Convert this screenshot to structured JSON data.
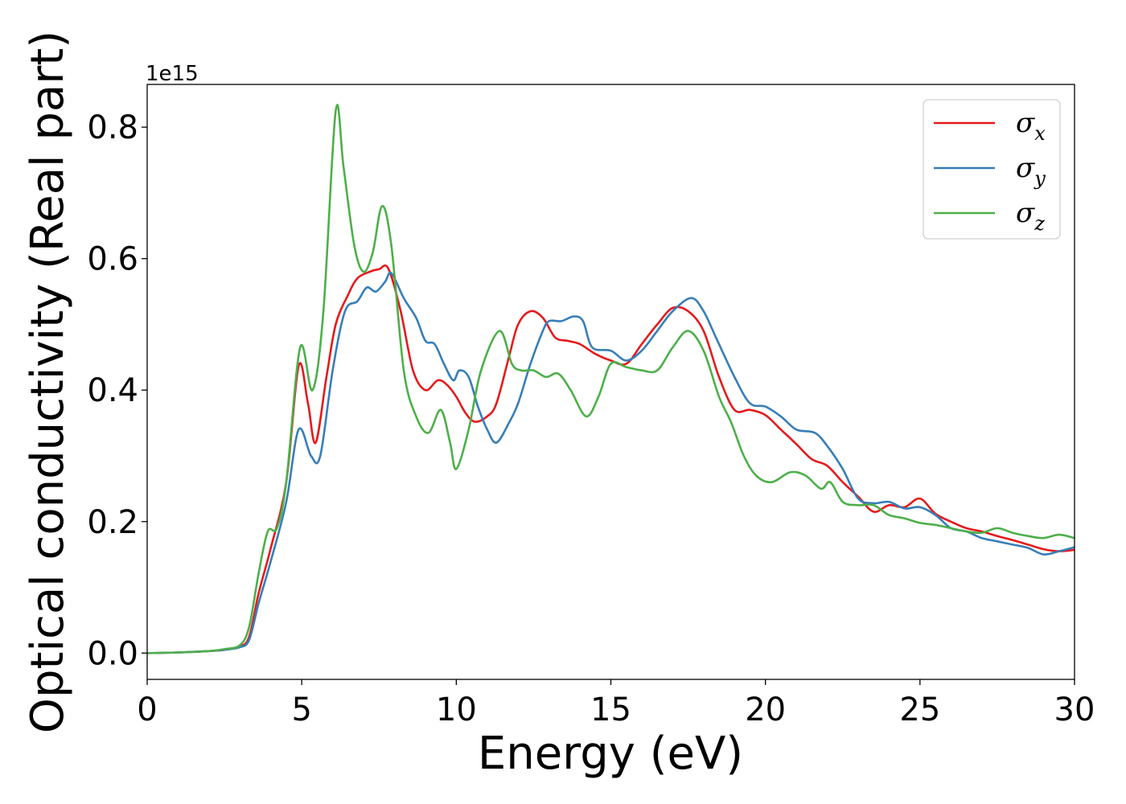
{
  "chart_data": {
    "type": "line",
    "xlabel": "Energy (eV)",
    "ylabel": "Optical conductivity (Real part)",
    "y_offset_label": "1e15",
    "xlim": [
      0,
      30
    ],
    "ylim": [
      -0.04,
      0.865
    ],
    "x_ticks": [
      "0",
      "5",
      "10",
      "15",
      "20",
      "25",
      "30"
    ],
    "y_ticks": [
      "0.0",
      "0.2",
      "0.4",
      "0.6",
      "0.8"
    ],
    "grid": false,
    "legend": "top-right",
    "series": [
      {
        "name": "σx",
        "symbol": "σ",
        "subscript": "x",
        "color": "#e41a1c",
        "x": [
          0,
          1,
          2,
          2.5,
          3,
          3.3,
          3.6,
          4,
          4.5,
          4.9,
          5.2,
          5.45,
          5.8,
          6.1,
          6.5,
          6.8,
          7.2,
          7.5,
          7.8,
          8.2,
          8.6,
          9,
          9.4,
          9.7,
          10,
          10.3,
          10.6,
          11,
          11.3,
          11.7,
          12,
          12.4,
          12.8,
          13.2,
          13.6,
          14,
          14.5,
          15,
          15.5,
          16,
          16.5,
          17,
          17.5,
          18,
          18.5,
          19,
          19.5,
          20,
          20.5,
          21,
          21.5,
          22,
          22.5,
          23,
          23.5,
          24,
          24.5,
          25,
          25.5,
          26,
          26.5,
          27,
          27.5,
          28,
          28.5,
          29,
          29.5,
          30
        ],
        "y": [
          0,
          0.001,
          0.003,
          0.005,
          0.01,
          0.025,
          0.09,
          0.16,
          0.26,
          0.437,
          0.38,
          0.32,
          0.42,
          0.5,
          0.545,
          0.57,
          0.58,
          0.584,
          0.585,
          0.52,
          0.43,
          0.4,
          0.415,
          0.408,
          0.39,
          0.365,
          0.352,
          0.36,
          0.38,
          0.45,
          0.5,
          0.52,
          0.51,
          0.48,
          0.475,
          0.47,
          0.455,
          0.445,
          0.44,
          0.47,
          0.5,
          0.525,
          0.52,
          0.49,
          0.42,
          0.37,
          0.37,
          0.362,
          0.34,
          0.318,
          0.295,
          0.285,
          0.26,
          0.238,
          0.215,
          0.225,
          0.222,
          0.235,
          0.212,
          0.2,
          0.19,
          0.185,
          0.178,
          0.172,
          0.165,
          0.158,
          0.155,
          0.157
        ]
      },
      {
        "name": "σy",
        "symbol": "σ",
        "subscript": "y",
        "color": "#377eb8",
        "x": [
          0,
          1,
          2,
          2.5,
          3,
          3.3,
          3.6,
          4,
          4.5,
          4.9,
          5.3,
          5.6,
          6,
          6.4,
          6.8,
          7.1,
          7.4,
          7.7,
          7.9,
          8.3,
          8.7,
          9,
          9.3,
          9.6,
          9.9,
          10.1,
          10.4,
          10.7,
          11,
          11.3,
          11.7,
          12,
          12.4,
          12.8,
          13,
          13.4,
          13.8,
          14.1,
          14.4,
          15,
          15.5,
          16,
          16.5,
          17,
          17.6,
          18,
          18.4,
          19,
          19.5,
          20,
          20.5,
          21,
          21.6,
          22,
          22.5,
          23,
          23.5,
          24,
          24.5,
          25,
          25.5,
          26,
          26.5,
          27,
          27.5,
          28,
          28.5,
          29,
          29.5,
          30
        ],
        "y": [
          0,
          0.001,
          0.003,
          0.005,
          0.009,
          0.02,
          0.075,
          0.14,
          0.23,
          0.34,
          0.3,
          0.3,
          0.43,
          0.52,
          0.535,
          0.556,
          0.55,
          0.565,
          0.578,
          0.54,
          0.51,
          0.475,
          0.47,
          0.44,
          0.415,
          0.43,
          0.42,
          0.375,
          0.34,
          0.32,
          0.35,
          0.38,
          0.44,
          0.49,
          0.505,
          0.505,
          0.512,
          0.505,
          0.465,
          0.46,
          0.445,
          0.46,
          0.49,
          0.52,
          0.54,
          0.52,
          0.48,
          0.42,
          0.38,
          0.375,
          0.36,
          0.34,
          0.335,
          0.315,
          0.28,
          0.235,
          0.228,
          0.23,
          0.22,
          0.222,
          0.21,
          0.19,
          0.185,
          0.175,
          0.17,
          0.165,
          0.16,
          0.15,
          0.155,
          0.161
        ]
      },
      {
        "name": "σz",
        "symbol": "σ",
        "subscript": "z",
        "color": "#4daf4a",
        "x": [
          0,
          1,
          2,
          2.5,
          3,
          3.3,
          3.6,
          3.9,
          4.2,
          4.5,
          4.95,
          5.35,
          5.7,
          6.1,
          6.35,
          6.7,
          7,
          7.3,
          7.6,
          7.9,
          8.3,
          8.7,
          9.1,
          9.5,
          9.8,
          10,
          10.4,
          10.8,
          11.4,
          11.8,
          12.1,
          12.5,
          12.9,
          13.3,
          13.7,
          14.2,
          14.6,
          15,
          15.5,
          16,
          16.5,
          17,
          17.5,
          18,
          18.5,
          18.9,
          19.3,
          19.7,
          20.2,
          20.8,
          21.3,
          21.8,
          22.1,
          22.5,
          23,
          23.5,
          24,
          24.5,
          25,
          25.5,
          26,
          26.5,
          27,
          27.5,
          28,
          28.5,
          29,
          29.5,
          30
        ],
        "y": [
          0,
          0.001,
          0.003,
          0.006,
          0.012,
          0.04,
          0.12,
          0.185,
          0.19,
          0.26,
          0.465,
          0.4,
          0.52,
          0.825,
          0.74,
          0.62,
          0.58,
          0.61,
          0.68,
          0.62,
          0.43,
          0.36,
          0.335,
          0.37,
          0.32,
          0.28,
          0.34,
          0.43,
          0.49,
          0.44,
          0.43,
          0.43,
          0.42,
          0.425,
          0.4,
          0.36,
          0.39,
          0.44,
          0.435,
          0.43,
          0.43,
          0.465,
          0.49,
          0.46,
          0.39,
          0.35,
          0.3,
          0.27,
          0.26,
          0.275,
          0.27,
          0.25,
          0.26,
          0.23,
          0.225,
          0.225,
          0.21,
          0.205,
          0.198,
          0.195,
          0.19,
          0.185,
          0.183,
          0.19,
          0.183,
          0.178,
          0.175,
          0.18,
          0.175
        ]
      }
    ]
  }
}
